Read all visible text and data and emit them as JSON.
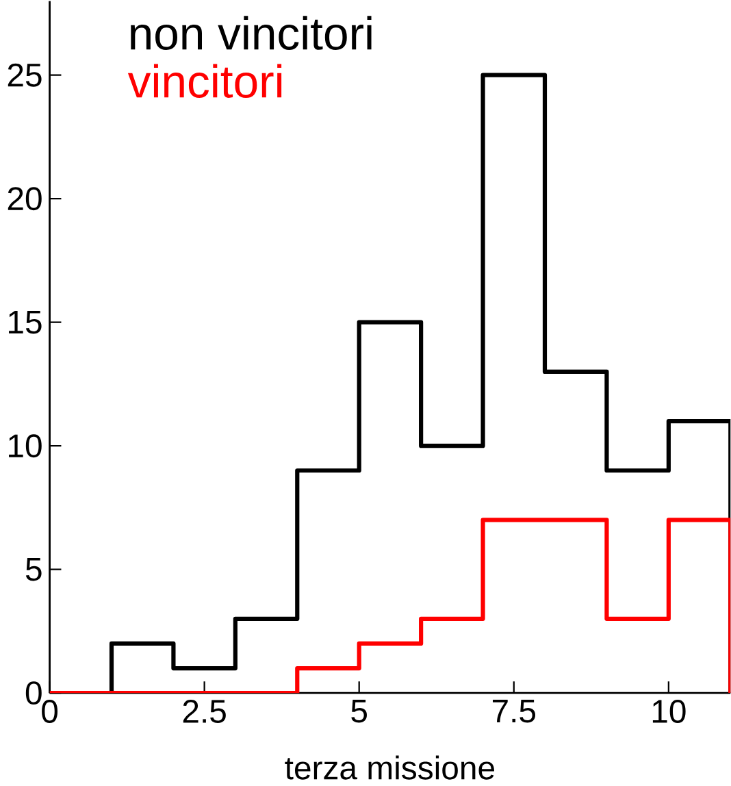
{
  "chart_data": {
    "type": "histogram",
    "xlabel": "terza missione",
    "bins": [
      0,
      1,
      2,
      3,
      4,
      5,
      6,
      7,
      8,
      9,
      10,
      11
    ],
    "series": [
      {
        "name": "non vincitori",
        "color": "#000000",
        "values": [
          0,
          2,
          1,
          3,
          9,
          15,
          10,
          25,
          13,
          9,
          11
        ]
      },
      {
        "name": "vincitori",
        "color": "#ff0000",
        "values": [
          0,
          0,
          0,
          0,
          1,
          2,
          3,
          7,
          7,
          3,
          7
        ]
      }
    ],
    "xlim": [
      0,
      11
    ],
    "ylim": [
      0,
      28
    ],
    "xticks": [
      0,
      2.5,
      5,
      7.5,
      10
    ],
    "yticks": [
      0,
      5,
      10,
      15,
      20,
      25
    ],
    "legend": "top left",
    "grid": false
  }
}
